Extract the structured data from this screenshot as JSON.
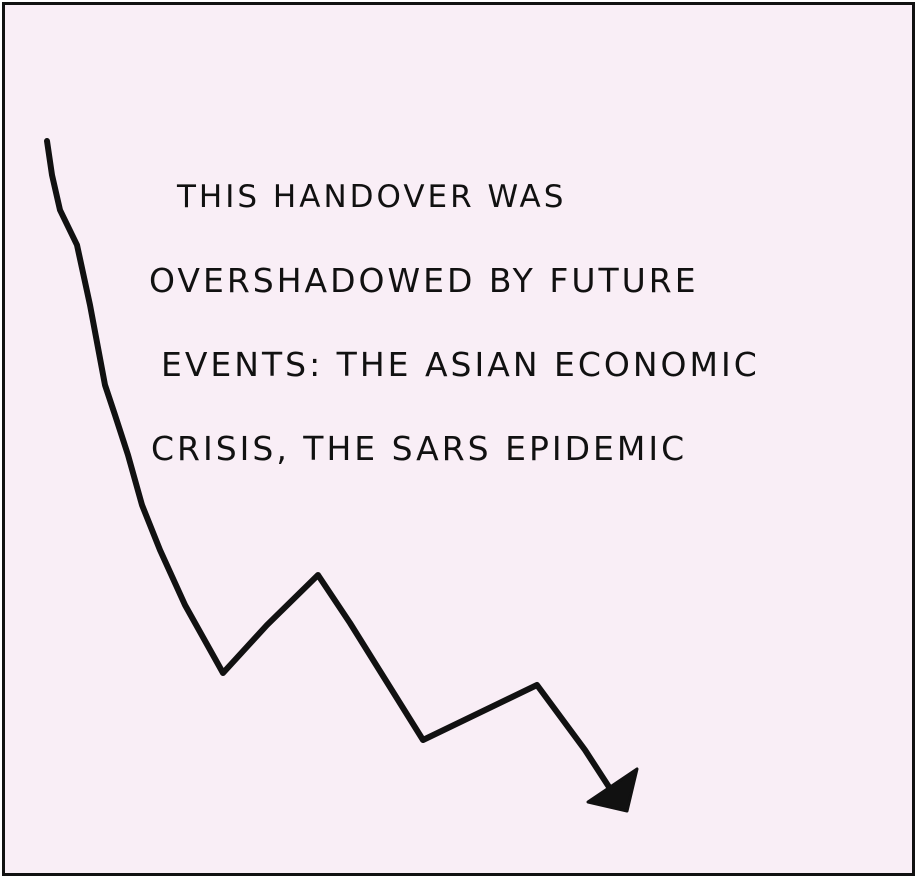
{
  "caption": {
    "lines": [
      "THIS HANDOVER WAS",
      "OVERSHADOWED BY FUTURE",
      "EVENTS: THE ASIAN ECONOMIC",
      "CRISIS, THE SARS EPIDEMIC"
    ]
  },
  "colors": {
    "panel_background": "#f9eef6",
    "ink": "#111111"
  },
  "icons": {
    "trend": "downward-zigzag-arrow-icon"
  }
}
